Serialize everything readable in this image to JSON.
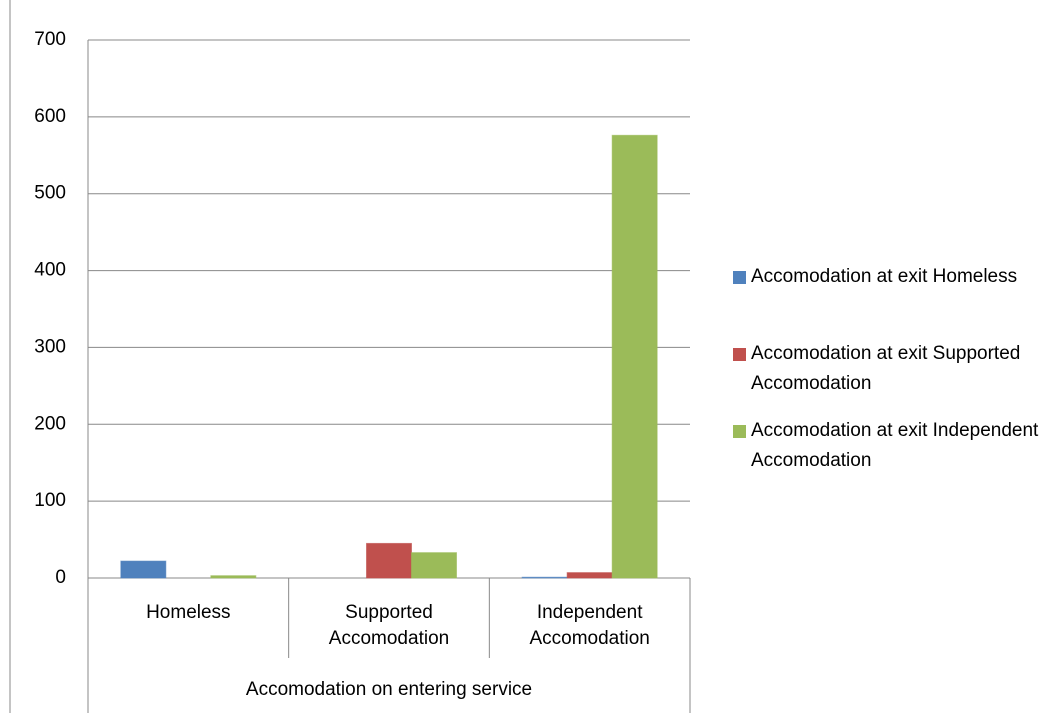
{
  "chart_data": {
    "type": "bar",
    "x_label": "Accomodation on entering service",
    "categories": [
      "Homeless",
      "Supported Accomodation",
      "Independent Accomodation"
    ],
    "series": [
      {
        "name": "Accomodation at exit Homeless",
        "color": "#4f81bd",
        "values": [
          22,
          0,
          1
        ]
      },
      {
        "name": "Accomodation at exit Supported Accomodation",
        "color": "#c0504d",
        "values": [
          0,
          45,
          7
        ]
      },
      {
        "name": "Accomodation at exit Independent Accomodation",
        "color": "#9bbb59",
        "values": [
          3,
          33,
          576
        ]
      }
    ],
    "ylim": [
      0,
      700
    ],
    "yticks": [
      0,
      100,
      200,
      300,
      400,
      500,
      600,
      700
    ],
    "grid": true,
    "legend": "right"
  }
}
